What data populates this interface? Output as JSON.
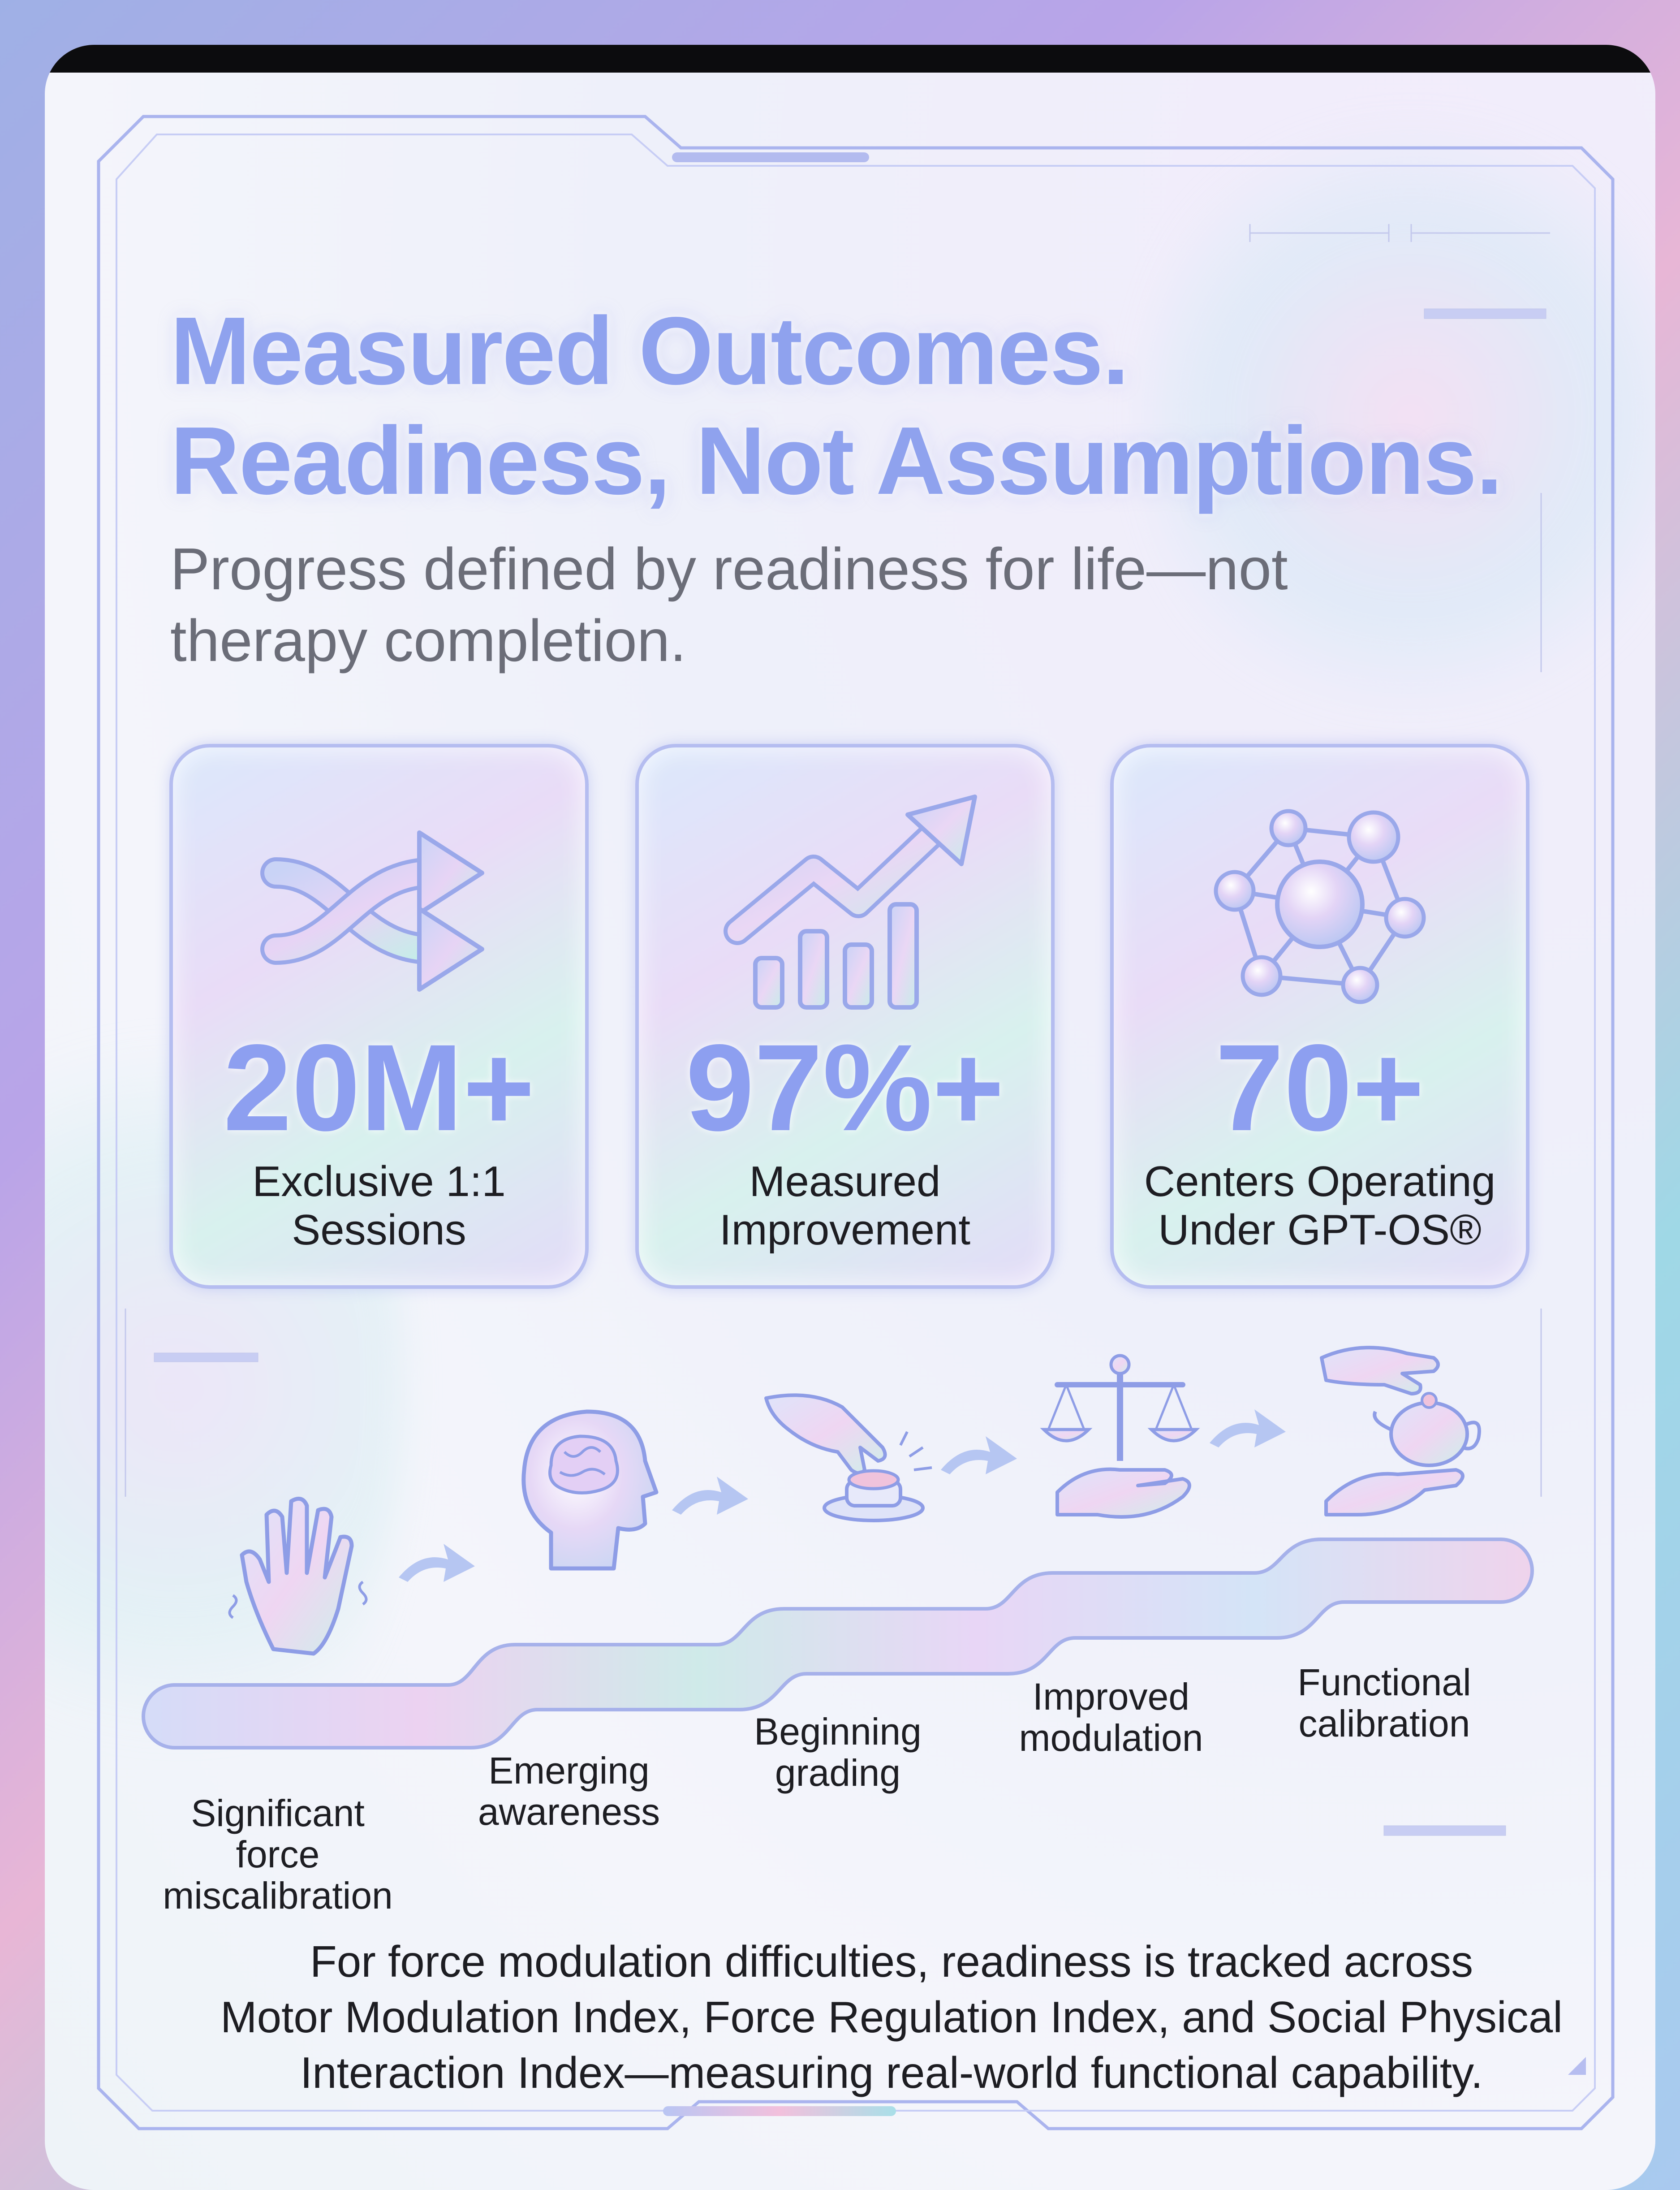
{
  "header": {
    "title_line1": "Measured Outcomes.",
    "title_line2": "Readiness, Not Assumptions.",
    "subtitle": "Progress defined by readiness for life—not therapy completion."
  },
  "stats": [
    {
      "value": "20M+",
      "label_line1": "Exclusive 1:1",
      "label_line2": "Sessions",
      "icon": "shuffle-arrows-icon"
    },
    {
      "value": "97%+",
      "label_line1": "Measured",
      "label_line2": "Improvement",
      "icon": "growth-chart-icon"
    },
    {
      "value": "70+",
      "label_line1": "Centers Operating",
      "label_line2": "Under GPT-OS®",
      "icon": "network-nodes-icon"
    }
  ],
  "stages": [
    {
      "line1": "Significant force",
      "line2": "miscalibration",
      "icon": "shaking-hand-icon"
    },
    {
      "line1": "Emerging",
      "line2": "awareness",
      "icon": "brain-head-icon"
    },
    {
      "line1": "Beginning",
      "line2": "grading",
      "icon": "hand-pressing-button-icon"
    },
    {
      "line1": "Improved",
      "line2": "modulation",
      "icon": "balance-scale-icon"
    },
    {
      "line1": "Functional",
      "line2": "calibration",
      "icon": "hands-passing-teapot-icon"
    }
  ],
  "footer": {
    "line1": "For force modulation difficulties, readiness is tracked across",
    "line2": "Motor Modulation Index, Force Regulation Index, and Social Physical",
    "line3": "Interaction Index—measuring real-world functional capability."
  },
  "colors": {
    "accent": "#8fa2ee",
    "border": "#b5bdf0",
    "text": "#1d1d22",
    "subtext": "#6b6d78"
  }
}
